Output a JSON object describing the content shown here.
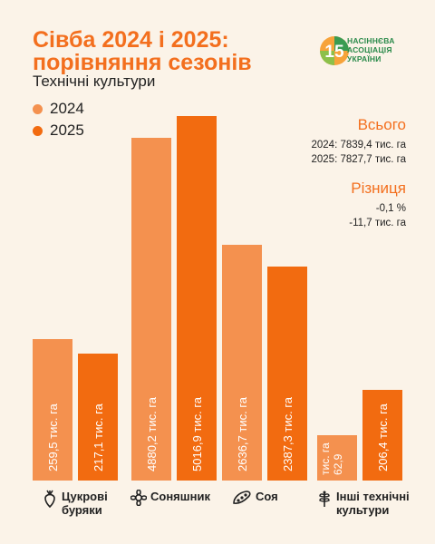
{
  "title_line1": "Сівба 2024 і 2025:",
  "title_line2": "порівняння сезонів",
  "subtitle": "Технічні культури",
  "logo": {
    "line1": "НАСІННЄВА",
    "line2": "АСОЦІАЦІЯ",
    "line3": "УКРАЇНИ",
    "number": "15"
  },
  "totals": {
    "header": "Всього",
    "line2024": "2024: 7839,4 тис. га",
    "line2025": "2025: 7827,7 тис. га"
  },
  "diff": {
    "header": "Різниця",
    "pct": "-0,1 %",
    "abs": "-11,7 тис. га"
  },
  "colors": {
    "s2024": "#f4914f",
    "s2025": "#f26b10",
    "accent": "#f36f1e",
    "bg": "#fbf3e8"
  },
  "chart_data": {
    "type": "bar",
    "categories": [
      "Цукрові буряки",
      "Соняшник",
      "Соя",
      "Інші технічні культури"
    ],
    "series": [
      {
        "name": "2024",
        "values": [
          259.5,
          4880.2,
          2636.7,
          62.9
        ],
        "labels": [
          "259,5 тис. га",
          "4880,2 тис. га",
          "2636,7 тис. га",
          "62,9 тис. га"
        ]
      },
      {
        "name": "2025",
        "values": [
          217.1,
          5016.9,
          2387.3,
          206.4
        ],
        "labels": [
          "217,1 тис. га",
          "5016,9 тис. га",
          "2387,3 тис. га",
          "206,4 тис. га"
        ]
      }
    ],
    "category_icons": [
      "beet-icon",
      "sunflower-icon",
      "soybean-icon",
      "plant-icon"
    ]
  }
}
